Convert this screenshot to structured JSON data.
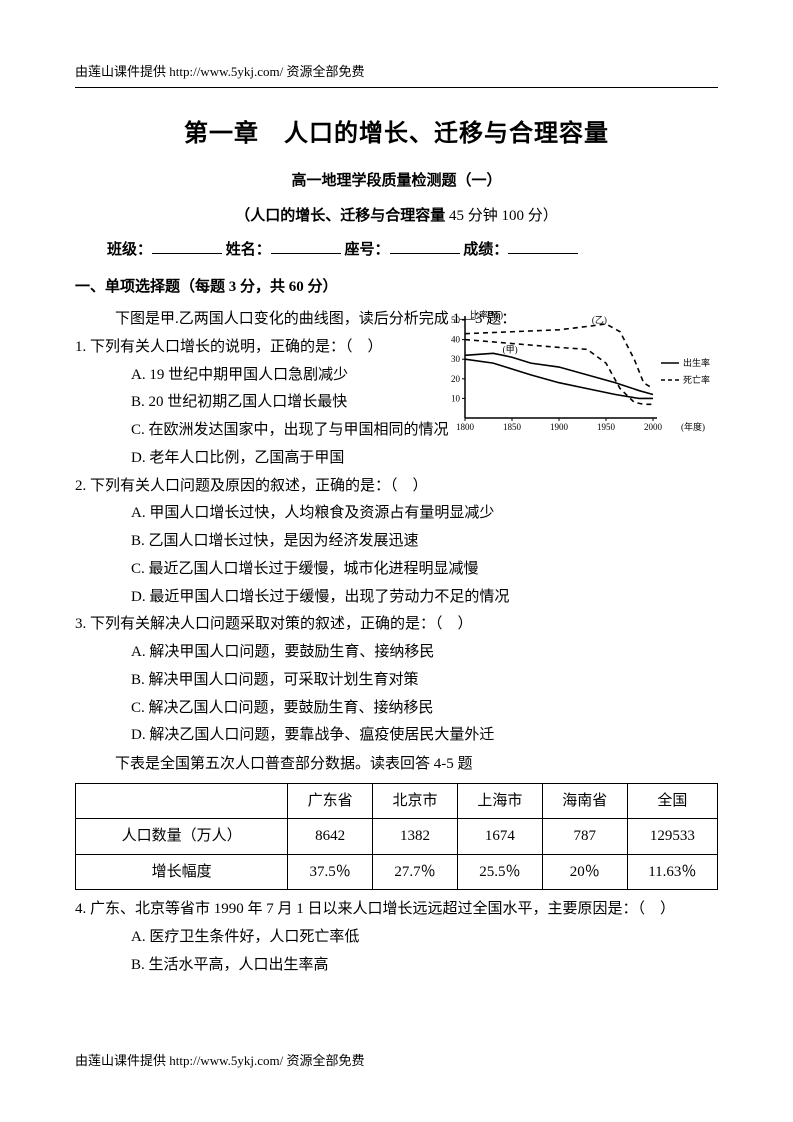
{
  "header": {
    "text": "由莲山课件提供 http://www.5ykj.com/    资源全部免费"
  },
  "footer": {
    "text": "由莲山课件提供 http://www.5ykj.com/    资源全部免费"
  },
  "titles": {
    "main": "第一章　人口的增长、迁移与合理容量",
    "sub": "高一地理学段质量检测题（一）",
    "info_pre": "（人口的增长、迁移与合理容量 ",
    "info_time": "45 分钟 100 分）"
  },
  "form": {
    "class_label": "班级：",
    "name_label": "姓名：",
    "seat_label": "座号：",
    "score_label": "成绩："
  },
  "section1": {
    "head": "一、单项选择题（每题 3 分，共 60 分）"
  },
  "intro1": "下图是甲.乙两国人口变化的曲线图，读后分析完成 1—3 题：",
  "q1": {
    "stem": "1. 下列有关人口增长的说明，正确的是：（　）",
    "a": "A. 19 世纪中期甲国人口急剧减少",
    "b": "B. 20 世纪初期乙国人口增长最快",
    "c": "C. 在欧洲发达国家中，出现了与甲国相同的情况",
    "d": "D. 老年人口比例，乙国高于甲国"
  },
  "q2": {
    "stem": "2. 下列有关人口问题及原因的叙述，正确的是：（　）",
    "a": "A. 甲国人口增长过快，人均粮食及资源占有量明显减少",
    "b": "B. 乙国人口增长过快，是因为经济发展迅速",
    "c": "C. 最近乙国人口增长过于缓慢，城市化进程明显减慢",
    "d": "D. 最近甲国人口增长过于缓慢，出现了劳动力不足的情况"
  },
  "q3": {
    "stem": "3. 下列有关解决人口问题采取对策的叙述，正确的是：（　）",
    "a": "A. 解决甲国人口问题，要鼓励生育、接纳移民",
    "b": "B. 解决甲国人口问题，可采取计划生育对策",
    "c": "C. 解决乙国人口问题，要鼓励生育、接纳移民",
    "d": "D. 解决乙国人口问题，要靠战争、瘟疫使居民大量外迁"
  },
  "intro2": "下表是全国第五次人口普查部分数据。读表回答 4-5 题",
  "table": {
    "headers": [
      "",
      "广东省",
      "北京市",
      "上海市",
      "海南省",
      "全国"
    ],
    "row1_label": "人口数量（万人）",
    "row1": [
      "8642",
      "1382",
      "1674",
      "787",
      "129533"
    ],
    "row2_label": "增长幅度",
    "row2": [
      "37.5％",
      "27.7％",
      "25.5％",
      "20％",
      "11.63％"
    ],
    "col_widths": [
      "140",
      "90",
      "90",
      "90",
      "90",
      "90"
    ]
  },
  "q4": {
    "stem": "4. 广东、北京等省市 1990 年 7 月 1 日以来人口增长远远超过全国水平，主要原因是：（　）",
    "a": "A. 医疗卫生条件好，人口死亡率低",
    "b": "B. 生活水平高，人口出生率高"
  },
  "chart": {
    "type": "line",
    "y_label_top": "比率(‰)",
    "y_ticks": [
      "10",
      "20",
      "30",
      "40",
      "50"
    ],
    "x_ticks": [
      "1800",
      "1850",
      "1900",
      "1950",
      "2000"
    ],
    "x_suffix": "(年度)",
    "legend_birth": "出生率",
    "legend_death": "死亡率",
    "series_labels": {
      "jia": "(甲)",
      "yi": "(乙)"
    },
    "ylim": [
      0,
      50
    ],
    "xlim": [
      1800,
      2000
    ],
    "background_color": "#ffffff",
    "axis_color": "#000000",
    "jia_birth": [
      [
        1800,
        32
      ],
      [
        1830,
        33
      ],
      [
        1850,
        31
      ],
      [
        1870,
        28
      ],
      [
        1900,
        26
      ],
      [
        1930,
        22
      ],
      [
        1960,
        18
      ],
      [
        1985,
        14
      ],
      [
        2000,
        12
      ]
    ],
    "jia_death": [
      [
        1800,
        30
      ],
      [
        1830,
        28
      ],
      [
        1850,
        25
      ],
      [
        1870,
        22
      ],
      [
        1900,
        18
      ],
      [
        1930,
        15
      ],
      [
        1960,
        12
      ],
      [
        1985,
        10
      ],
      [
        2000,
        10
      ]
    ],
    "yi_birth": [
      [
        1800,
        43
      ],
      [
        1850,
        44
      ],
      [
        1900,
        45
      ],
      [
        1935,
        47
      ],
      [
        1950,
        48
      ],
      [
        1965,
        44
      ],
      [
        1980,
        30
      ],
      [
        1990,
        18
      ],
      [
        2000,
        15
      ]
    ],
    "yi_death": [
      [
        1800,
        40
      ],
      [
        1850,
        38
      ],
      [
        1900,
        36
      ],
      [
        1930,
        35
      ],
      [
        1950,
        28
      ],
      [
        1965,
        15
      ],
      [
        1980,
        8
      ],
      [
        1990,
        7
      ],
      [
        2000,
        7
      ]
    ]
  }
}
